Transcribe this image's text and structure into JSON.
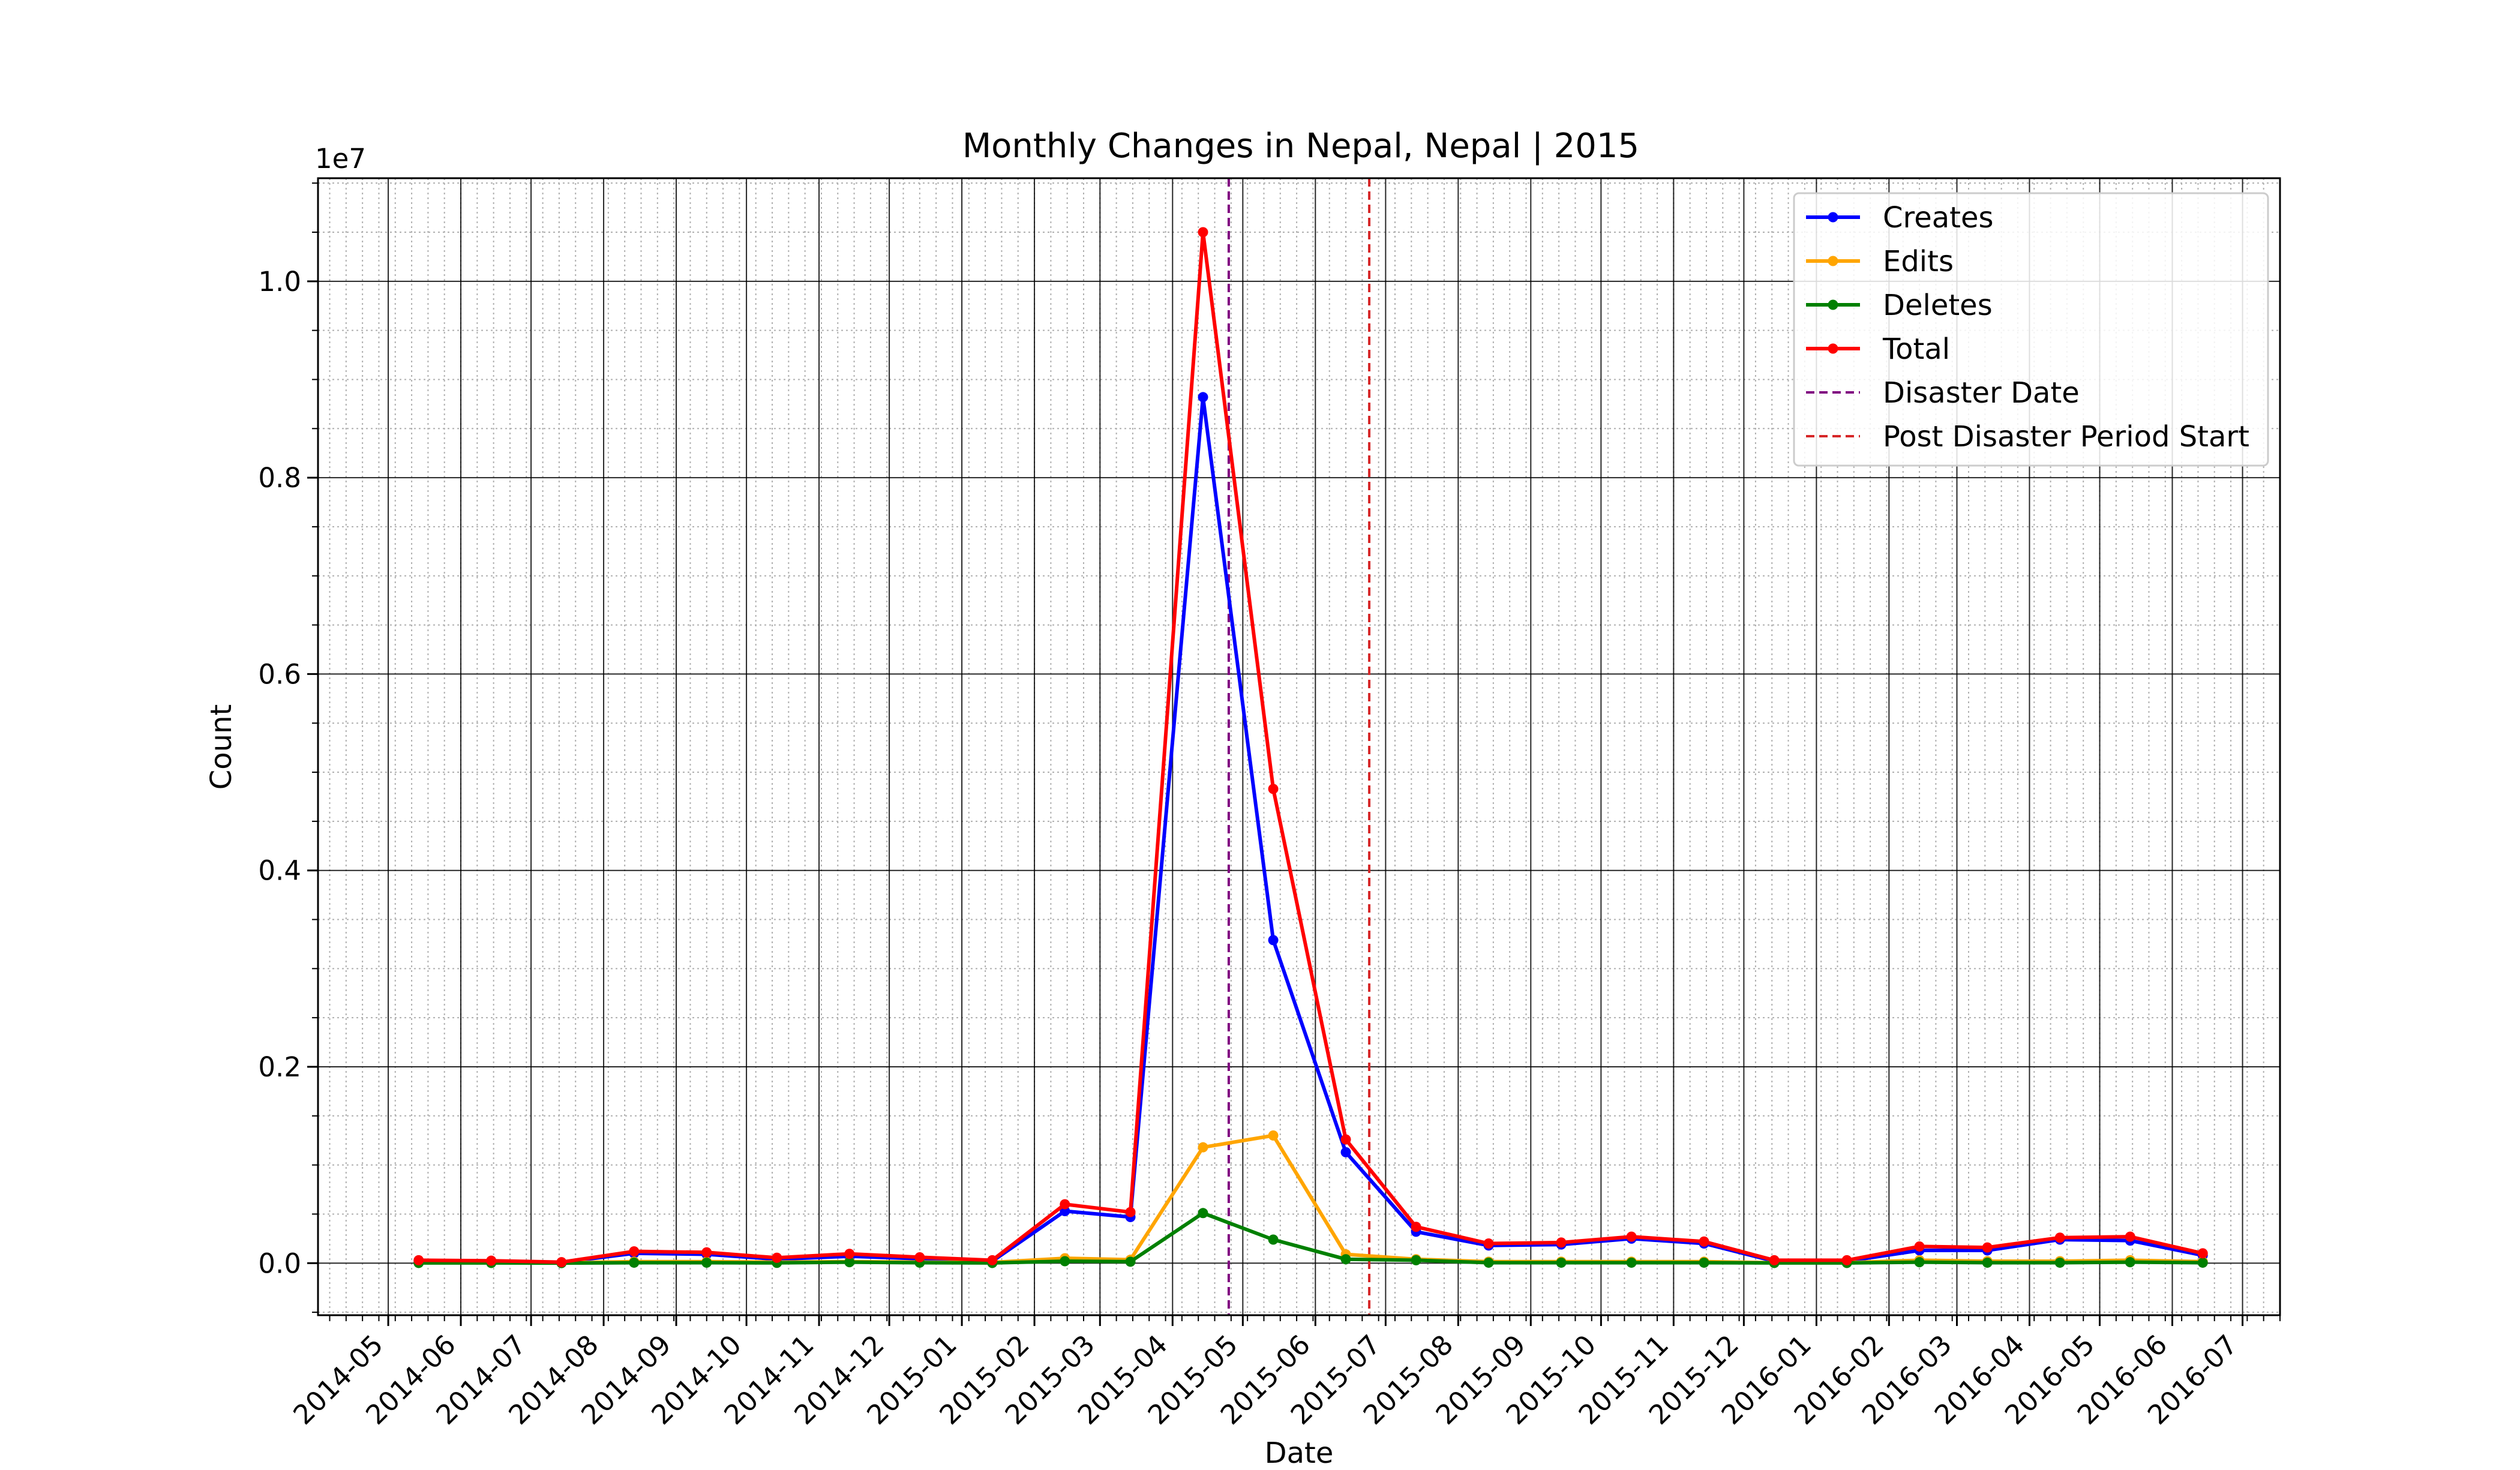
{
  "chart_data": {
    "type": "line",
    "title": "Monthly Changes in Nepal, Nepal | 2015",
    "xlabel": "Date",
    "ylabel": "Count",
    "y_offset_label": "1e7",
    "y_scale_factor": 10000000,
    "ylim": [
      -530000,
      11050000
    ],
    "xlim": [
      "2014-04-01",
      "2016-07-17"
    ],
    "grid": true,
    "legend_position": "top-right",
    "x": [
      "2014-05-14",
      "2014-06-14",
      "2014-07-14",
      "2014-08-14",
      "2014-09-14",
      "2014-10-14",
      "2014-11-14",
      "2014-12-14",
      "2015-01-14",
      "2015-02-14",
      "2015-03-14",
      "2015-04-14",
      "2015-05-14",
      "2015-06-14",
      "2015-07-14",
      "2015-08-14",
      "2015-09-14",
      "2015-10-14",
      "2015-11-14",
      "2015-12-14",
      "2016-01-14",
      "2016-02-14",
      "2016-03-14",
      "2016-04-14",
      "2016-05-14",
      "2016-06-14"
    ],
    "x_ticks": [
      "2014-05",
      "2014-06",
      "2014-07",
      "2014-08",
      "2014-09",
      "2014-10",
      "2014-11",
      "2014-12",
      "2015-01",
      "2015-02",
      "2015-03",
      "2015-04",
      "2015-05",
      "2015-06",
      "2015-07",
      "2015-08",
      "2015-09",
      "2015-10",
      "2015-11",
      "2015-12",
      "2016-01",
      "2016-02",
      "2016-03",
      "2016-04",
      "2016-05",
      "2016-06",
      "2016-07"
    ],
    "x_tick_dates": [
      "2014-05-01",
      "2014-06-01",
      "2014-07-01",
      "2014-08-01",
      "2014-09-01",
      "2014-10-01",
      "2014-11-01",
      "2014-12-01",
      "2015-01-01",
      "2015-02-01",
      "2015-03-01",
      "2015-04-01",
      "2015-05-01",
      "2015-06-01",
      "2015-07-01",
      "2015-08-01",
      "2015-09-01",
      "2015-10-01",
      "2015-11-01",
      "2015-12-01",
      "2016-01-01",
      "2016-02-01",
      "2016-03-01",
      "2016-04-01",
      "2016-05-01",
      "2016-06-01",
      "2016-07-01"
    ],
    "y_ticks": [
      0,
      2000000,
      4000000,
      6000000,
      8000000,
      10000000
    ],
    "y_tick_labels": [
      "0.0",
      "0.2",
      "0.4",
      "0.6",
      "0.8",
      "1.0"
    ],
    "series": [
      {
        "name": "Creates",
        "color": "#0000ff",
        "values": [
          20000,
          15000,
          8000,
          100000,
          90000,
          40000,
          70000,
          45000,
          20000,
          530000,
          470000,
          8820000,
          3290000,
          1130000,
          320000,
          180000,
          190000,
          250000,
          200000,
          20000,
          20000,
          130000,
          130000,
          240000,
          230000,
          80000
        ]
      },
      {
        "name": "Edits",
        "color": "#ffa500",
        "values": [
          10000,
          8000,
          5000,
          15000,
          15000,
          10000,
          15000,
          10000,
          8000,
          50000,
          35000,
          1180000,
          1300000,
          90000,
          40000,
          15000,
          15000,
          15000,
          15000,
          5000,
          5000,
          30000,
          20000,
          20000,
          30000,
          15000
        ]
      },
      {
        "name": "Deletes",
        "color": "#008000",
        "values": [
          2000,
          2000,
          1000,
          5000,
          5000,
          3000,
          10000,
          5000,
          2000,
          20000,
          15000,
          510000,
          240000,
          40000,
          30000,
          5000,
          5000,
          5000,
          5000,
          2000,
          2000,
          10000,
          5000,
          5000,
          10000,
          5000
        ]
      },
      {
        "name": "Total",
        "color": "#ff0000",
        "values": [
          30000,
          25000,
          10000,
          120000,
          110000,
          55000,
          95000,
          60000,
          30000,
          600000,
          520000,
          10500000,
          4830000,
          1260000,
          370000,
          200000,
          210000,
          270000,
          220000,
          30000,
          30000,
          170000,
          160000,
          260000,
          270000,
          100000
        ]
      }
    ],
    "vlines": [
      {
        "name": "Disaster Date",
        "date": "2015-04-25",
        "color": "#800080"
      },
      {
        "name": "Post Disaster Period Start",
        "date": "2015-06-24",
        "color": "#d62728"
      }
    ]
  }
}
